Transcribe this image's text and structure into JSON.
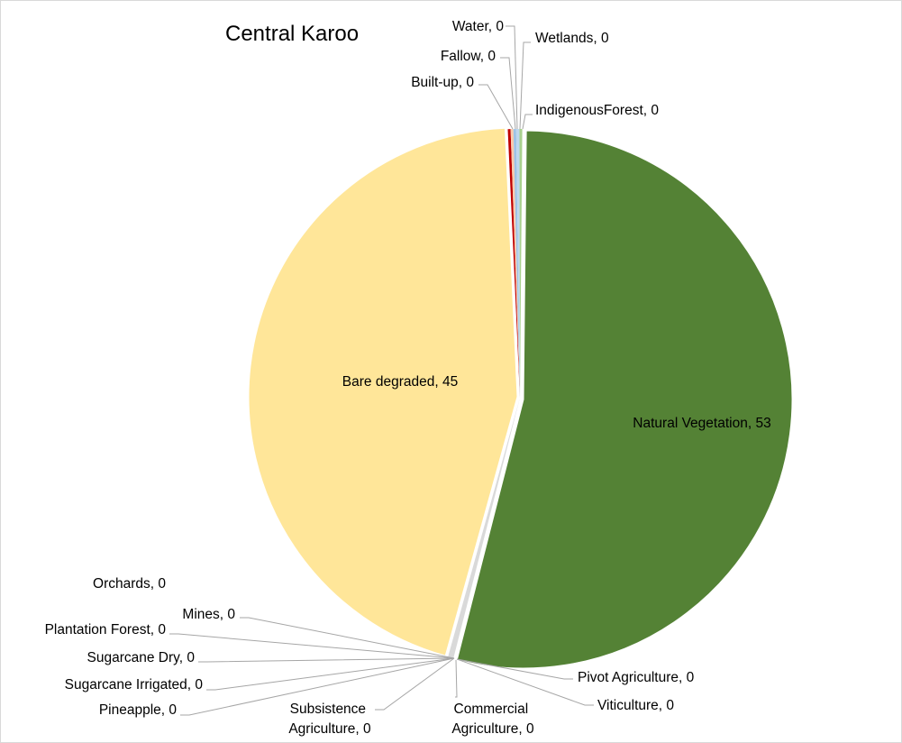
{
  "chart_data": {
    "type": "pie",
    "title": "Central Karoo",
    "slices": [
      {
        "name": "Natural Vegetation",
        "value": 53,
        "color": "#548235"
      },
      {
        "name": "Pivot  Agriculture",
        "value": 0
      },
      {
        "name": "Viticulture",
        "value": 0
      },
      {
        "name": "Commercial Agriculture",
        "value": 0,
        "color": "#d9d9d9"
      },
      {
        "name": "Subsistence Agriculture",
        "value": 0
      },
      {
        "name": "Pineapple",
        "value": 0
      },
      {
        "name": "Sugarcane Irrigated",
        "value": 0
      },
      {
        "name": "Sugarcane Dry",
        "value": 0
      },
      {
        "name": "Plantation Forest",
        "value": 0
      },
      {
        "name": "Mines",
        "value": 0
      },
      {
        "name": "Orchards",
        "value": 0
      },
      {
        "name": "Bare degraded",
        "value": 45,
        "color": "#ffe699"
      },
      {
        "name": "Built-up",
        "value": 0,
        "color": "#c00000"
      },
      {
        "name": "Fallow",
        "value": 0,
        "color": "#f8cbad"
      },
      {
        "name": "Water",
        "value": 0,
        "color": "#9dc3e6"
      },
      {
        "name": "Wetlands",
        "value": 0,
        "color": "#bdd7ee"
      },
      {
        "name": "IndigenousForest",
        "value": 0,
        "color": "#a9d18e"
      }
    ],
    "data_labels": [
      "Water, 0",
      "Wetlands, 0",
      "Fallow, 0",
      "Built-up, 0",
      "IndigenousForest, 0",
      "Bare degraded, 45",
      "Natural Vegetation, 53",
      "Orchards, 0",
      "Mines, 0",
      "Plantation Forest, 0",
      "Sugarcane Dry, 0",
      "Sugarcane Irrigated, 0",
      "Pineapple, 0",
      "Subsistence Agriculture, 0",
      "Commercial Agriculture, 0",
      "Pivot  Agriculture, 0",
      "Viticulture, 0"
    ],
    "legend": "none"
  }
}
